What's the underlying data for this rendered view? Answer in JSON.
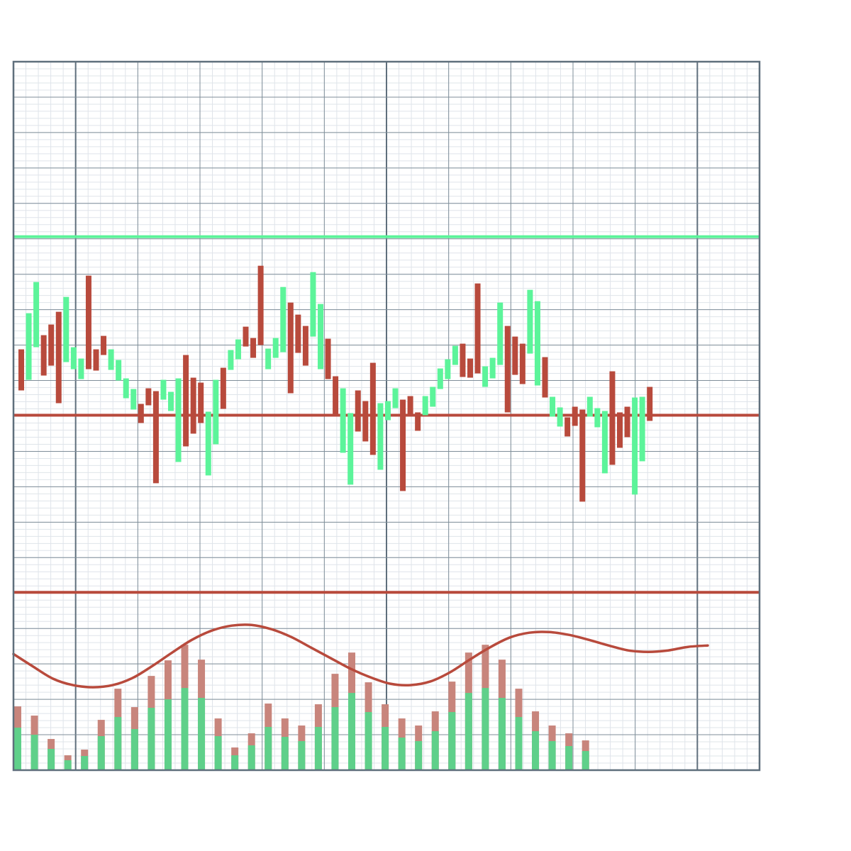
{
  "chart_data": {
    "type": "bar",
    "title": "",
    "xlabel": "",
    "ylabel": "",
    "ylim": [
      0,
      100
    ],
    "grid": true,
    "colors": {
      "up": "#5cf49a",
      "down": "#b84a3c",
      "volume_up": "#5fd08a",
      "volume_down": "#c8857c",
      "frame": "#5f6f7c",
      "grid_major": "#7f8e99",
      "grid_minor": "#dfe4ea"
    },
    "reference_lines": [
      {
        "value": 75.3,
        "color": "#5cf49a"
      },
      {
        "value": 50.1,
        "color": "#b84a3c"
      },
      {
        "value": 25.1,
        "color": "#b84a3c"
      }
    ],
    "price_bars": [
      [
        59.4,
        53.6,
        "down"
      ],
      [
        64.5,
        55.1,
        "up"
      ],
      [
        68.9,
        59.7,
        "up"
      ],
      [
        61.4,
        55.7,
        "down"
      ],
      [
        62.9,
        57.1,
        "down"
      ],
      [
        64.7,
        51.8,
        "down"
      ],
      [
        66.8,
        57.6,
        "up"
      ],
      [
        59.7,
        56.6,
        "up"
      ],
      [
        58.1,
        55.2,
        "up"
      ],
      [
        69.8,
        56.6,
        "down"
      ],
      [
        59.4,
        56.4,
        "down"
      ],
      [
        61.3,
        58.6,
        "down"
      ],
      [
        59.4,
        56.5,
        "up"
      ],
      [
        57.9,
        55.0,
        "up"
      ],
      [
        55.3,
        52.5,
        "up"
      ],
      [
        53.8,
        50.9,
        "up"
      ],
      [
        51.7,
        49.0,
        "down"
      ],
      [
        53.9,
        51.5,
        "down"
      ],
      [
        53.5,
        40.5,
        "down"
      ],
      [
        55.1,
        52.3,
        "up"
      ],
      [
        53.4,
        50.7,
        "up"
      ],
      [
        55.3,
        43.5,
        "up"
      ],
      [
        58.6,
        45.7,
        "down"
      ],
      [
        55.4,
        47.5,
        "down"
      ],
      [
        54.7,
        49.0,
        "down"
      ],
      [
        50.6,
        41.6,
        "up"
      ],
      [
        55.1,
        46.0,
        "up"
      ],
      [
        56.8,
        51.0,
        "down"
      ],
      [
        59.3,
        56.5,
        "up"
      ],
      [
        60.8,
        58.0,
        "up"
      ],
      [
        62.6,
        59.8,
        "down"
      ],
      [
        61.0,
        58.2,
        "down"
      ],
      [
        71.2,
        60.0,
        "down"
      ],
      [
        59.5,
        56.6,
        "up"
      ],
      [
        61.0,
        58.2,
        "up"
      ],
      [
        68.2,
        59.0,
        "up"
      ],
      [
        66.0,
        53.2,
        "down"
      ],
      [
        64.3,
        58.9,
        "down"
      ],
      [
        62.7,
        57.1,
        "down"
      ],
      [
        70.3,
        61.2,
        "up"
      ],
      [
        65.8,
        56.6,
        "up"
      ],
      [
        60.9,
        55.2,
        "down"
      ],
      [
        55.6,
        50.1,
        "down"
      ],
      [
        53.9,
        44.8,
        "up"
      ],
      [
        50.4,
        40.3,
        "up"
      ],
      [
        53.6,
        47.8,
        "down"
      ],
      [
        52.1,
        46.4,
        "down"
      ],
      [
        57.5,
        44.5,
        "down"
      ],
      [
        51.8,
        42.4,
        "up"
      ],
      [
        52.1,
        49.4,
        "up"
      ],
      [
        53.9,
        51.1,
        "up"
      ],
      [
        52.3,
        39.4,
        "down"
      ],
      [
        52.8,
        50.0,
        "down"
      ],
      [
        50.5,
        47.9,
        "down"
      ],
      [
        52.8,
        50.1,
        "up"
      ],
      [
        54.1,
        51.3,
        "up"
      ],
      [
        56.7,
        53.8,
        "up"
      ],
      [
        58.0,
        55.2,
        "up"
      ],
      [
        59.9,
        57.2,
        "up"
      ],
      [
        60.2,
        55.5,
        "down"
      ],
      [
        58.1,
        55.4,
        "down"
      ],
      [
        68.7,
        56.0,
        "down"
      ],
      [
        57.0,
        54.1,
        "up"
      ],
      [
        58.2,
        55.3,
        "up"
      ],
      [
        66.0,
        57.2,
        "up"
      ],
      [
        62.7,
        50.5,
        "down"
      ],
      [
        61.2,
        55.8,
        "down"
      ],
      [
        60.2,
        54.5,
        "down"
      ],
      [
        67.8,
        58.8,
        "up"
      ],
      [
        66.2,
        54.3,
        "up"
      ],
      [
        58.3,
        52.6,
        "down"
      ],
      [
        52.7,
        49.9,
        "up"
      ],
      [
        51.2,
        48.5,
        "up"
      ],
      [
        49.8,
        47.1,
        "down"
      ],
      [
        51.3,
        48.6,
        "down"
      ],
      [
        50.9,
        37.9,
        "down"
      ],
      [
        52.7,
        49.9,
        "up"
      ],
      [
        51.1,
        48.4,
        "up"
      ],
      [
        50.7,
        41.9,
        "up"
      ],
      [
        56.3,
        43.1,
        "down"
      ],
      [
        50.5,
        45.5,
        "down"
      ],
      [
        51.3,
        47.0,
        "down"
      ],
      [
        52.6,
        38.9,
        "up"
      ],
      [
        52.7,
        43.6,
        "up"
      ],
      [
        54.1,
        49.3,
        "down"
      ]
    ],
    "volume_bars": [
      [
        6.0,
        9.0
      ],
      [
        5.0,
        7.7
      ],
      [
        3.0,
        4.4
      ],
      [
        1.4,
        2.1
      ],
      [
        2.0,
        2.9
      ],
      [
        4.8,
        7.1
      ],
      [
        7.5,
        11.5
      ],
      [
        5.8,
        8.9
      ],
      [
        8.8,
        13.3
      ],
      [
        10.0,
        15.5
      ],
      [
        11.6,
        17.7
      ],
      [
        10.2,
        15.6
      ],
      [
        4.8,
        7.3
      ],
      [
        2.1,
        3.2
      ],
      [
        3.5,
        5.2
      ],
      [
        6.1,
        9.4
      ],
      [
        4.7,
        7.3
      ],
      [
        4.1,
        6.3
      ],
      [
        6.1,
        9.3
      ],
      [
        8.9,
        13.6
      ],
      [
        10.9,
        16.6
      ],
      [
        8.2,
        12.4
      ],
      [
        6.1,
        9.3
      ],
      [
        4.6,
        7.3
      ],
      [
        4.1,
        6.3
      ],
      [
        5.5,
        8.3
      ],
      [
        8.2,
        12.5
      ],
      [
        10.9,
        16.6
      ],
      [
        11.6,
        17.7
      ],
      [
        10.2,
        15.6
      ],
      [
        7.5,
        11.5
      ],
      [
        5.5,
        8.3
      ],
      [
        4.1,
        6.3
      ],
      [
        3.4,
        5.2
      ],
      [
        2.7,
        4.2
      ]
    ],
    "volume_ma": [
      16.4,
      14.6,
      12.9,
      12.0,
      11.7,
      12.0,
      13.0,
      14.7,
      16.6,
      18.4,
      19.7,
      20.4,
      20.5,
      19.9,
      18.8,
      17.3,
      15.8,
      14.3,
      13.1,
      12.2,
      12.0,
      12.5,
      13.8,
      15.6,
      17.3,
      18.7,
      19.4,
      19.5,
      19.1,
      18.4,
      17.6,
      16.9,
      16.7,
      16.9,
      17.4,
      17.6
    ]
  }
}
